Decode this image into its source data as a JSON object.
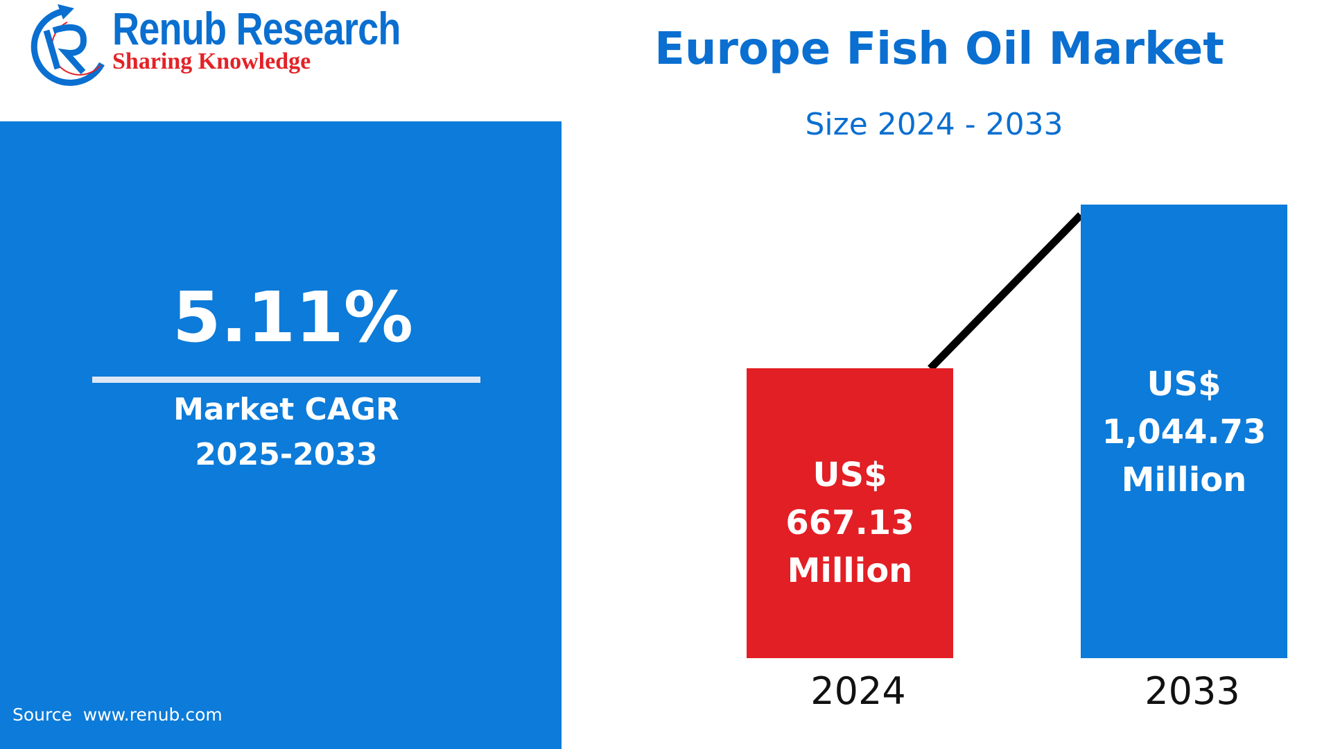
{
  "logo": {
    "name": "Renub Research",
    "tagline": "Sharing Knowledge"
  },
  "left_panel": {
    "cagr_value": "5.11%",
    "cagr_label_line1": "Market CAGR",
    "cagr_label_line2": "2025-2033",
    "source": "Source  www.renub.com"
  },
  "colors": {
    "brand_blue": "#0c7bd9",
    "red": "#e21f25",
    "line": "#000000"
  },
  "chart_data": {
    "type": "bar",
    "title": "Europe Fish Oil Market",
    "subtitle": "Size 2024 - 2033",
    "categories": [
      "2024",
      "2033"
    ],
    "values": [
      667.13,
      1044.73
    ],
    "unit": "US$ Million",
    "bar_colors": [
      "#e21f25",
      "#0c7bd9"
    ],
    "data_labels": [
      [
        "US$",
        "667.13",
        "Million"
      ],
      [
        "US$",
        "1,044.73",
        "Million"
      ]
    ],
    "trend_line": true,
    "grid": false
  }
}
